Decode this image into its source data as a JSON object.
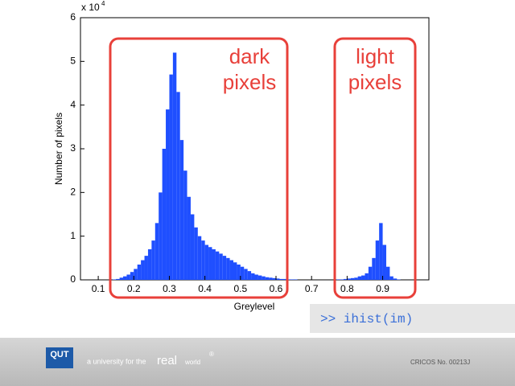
{
  "chart_data": {
    "type": "histogram",
    "xlabel": "Greylevel",
    "ylabel": "Number of pixels",
    "y_multiplier": {
      "base": "x 10",
      "exponent": "4"
    },
    "color": "#1f4fff",
    "bins": [
      0.14,
      0.15,
      0.16,
      0.17,
      0.18,
      0.19,
      0.2,
      0.21,
      0.22,
      0.23,
      0.24,
      0.25,
      0.26,
      0.27,
      0.28,
      0.29,
      0.3,
      0.31,
      0.32,
      0.33,
      0.34,
      0.35,
      0.36,
      0.37,
      0.38,
      0.39,
      0.4,
      0.41,
      0.42,
      0.43,
      0.44,
      0.45,
      0.46,
      0.47,
      0.48,
      0.49,
      0.5,
      0.51,
      0.52,
      0.53,
      0.54,
      0.55,
      0.56,
      0.57,
      0.58,
      0.59,
      0.6,
      0.61,
      0.62,
      0.63,
      0.64,
      0.65,
      0.66,
      0.67,
      0.68,
      0.69,
      0.7,
      0.71,
      0.72,
      0.73,
      0.74,
      0.75,
      0.76,
      0.77,
      0.78,
      0.79,
      0.8,
      0.81,
      0.82,
      0.83,
      0.84,
      0.85,
      0.86,
      0.87,
      0.88,
      0.89,
      0.9,
      0.91,
      0.92,
      0.93,
      0.94,
      0.95,
      0.96,
      0.97,
      0.98,
      0.99
    ],
    "values": [
      0.01,
      0.02,
      0.05,
      0.08,
      0.12,
      0.18,
      0.25,
      0.35,
      0.45,
      0.55,
      0.7,
      0.9,
      1.3,
      2.0,
      3.0,
      3.9,
      4.7,
      5.2,
      4.3,
      3.2,
      2.5,
      1.9,
      1.5,
      1.2,
      1.0,
      0.9,
      0.8,
      0.75,
      0.7,
      0.65,
      0.6,
      0.55,
      0.5,
      0.45,
      0.4,
      0.35,
      0.3,
      0.25,
      0.2,
      0.15,
      0.12,
      0.1,
      0.08,
      0.06,
      0.05,
      0.04,
      0.03,
      0.02,
      0.02,
      0.01,
      0.01,
      0.01,
      0,
      0,
      0,
      0,
      0,
      0,
      0,
      0,
      0,
      0,
      0,
      0.01,
      0.01,
      0.02,
      0.03,
      0.04,
      0.05,
      0.08,
      0.1,
      0.15,
      0.3,
      0.5,
      0.9,
      1.3,
      0.8,
      0.3,
      0.08,
      0.03,
      0.01,
      0,
      0,
      0,
      0
    ],
    "xlim": [
      0.05,
      1.03
    ],
    "xticks": [
      0.1,
      0.2,
      0.3,
      0.4,
      0.5,
      0.6,
      0.7,
      0.8,
      0.9
    ],
    "ylim": [
      0,
      6
    ],
    "yticks": [
      0,
      1,
      2,
      3,
      4,
      5,
      6
    ],
    "annotations": [
      {
        "lines": [
          "dark",
          "pixels"
        ]
      },
      {
        "lines": [
          "light",
          "pixels"
        ]
      }
    ]
  },
  "command": ">> ihist(im)",
  "footer": {
    "logo": "QUT",
    "tagline": "a university for the",
    "real": "real",
    "world": "world",
    "registered": "®",
    "cricos": "CRICOS No. 00213J"
  }
}
